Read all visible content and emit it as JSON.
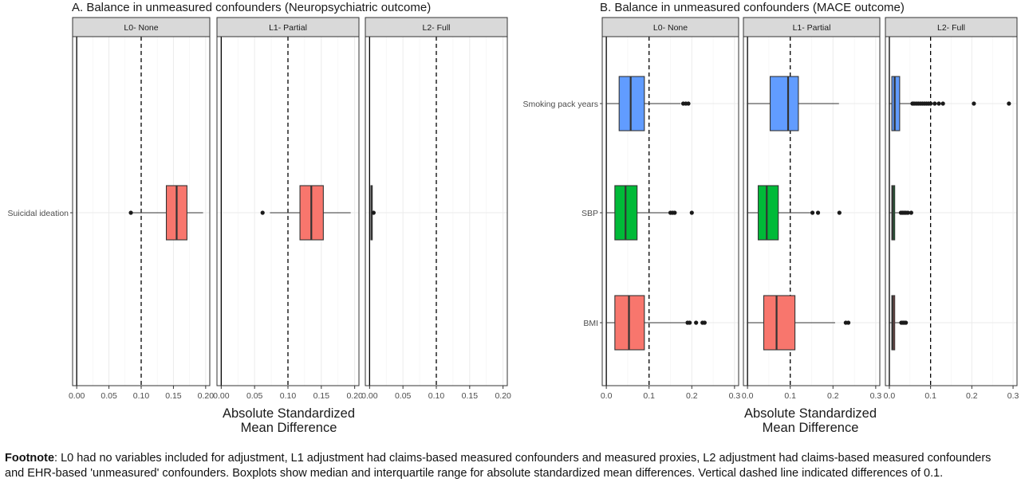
{
  "footnote": {
    "label": "Footnote",
    "text": ": L0 had no variables included for adjustment, L1 adjustment had claims-based measured confounders and measured proxies, L2 adjustment had claims-based measured confounders and EHR-based 'unmeasured' confounders. Boxplots show median and interquartile range for absolute standardized mean differences. Vertical dashed line indicated differences of 0.1."
  },
  "chart_data": [
    {
      "type": "boxplot",
      "title": "A. Balance in unmeasured confounders (Neuropsychiatric outcome)",
      "xlabel": "Absolute Standardized\nMean Difference",
      "ylabel": "",
      "xlim": [
        0,
        0.2
      ],
      "x_ticks": [
        "0.00",
        "0.05",
        "0.10",
        "0.15",
        "0.20"
      ],
      "reference_line": 0.1,
      "categories": [
        "Suicidal ideation"
      ],
      "colors": {
        "Suicidal ideation": "#F8766D"
      },
      "facets": [
        {
          "label": "L0- None",
          "boxes": [
            {
              "variable": "Suicidal ideation",
              "min": 0.087,
              "q1": 0.139,
              "median": 0.155,
              "q3": 0.171,
              "max": 0.196,
              "outliers": [
                0.084
              ]
            }
          ]
        },
        {
          "label": "L1- Partial",
          "boxes": [
            {
              "variable": "Suicidal ideation",
              "min": 0.073,
              "q1": 0.118,
              "median": 0.135,
              "q3": 0.153,
              "max": 0.194,
              "outliers": [
                0.062
              ]
            }
          ]
        },
        {
          "label": "L2- Full",
          "boxes": [
            {
              "variable": "Suicidal ideation",
              "min": 0.002,
              "q1": 0.002,
              "median": 0.003,
              "q3": 0.004,
              "max": 0.005,
              "outliers": [
                0.006
              ]
            }
          ]
        }
      ]
    },
    {
      "type": "boxplot",
      "title": "B. Balance in unmeasured confounders (MACE outcome)",
      "xlabel": "Absolute Standardized\nMean Difference",
      "ylabel": "",
      "xlim": [
        0,
        0.3
      ],
      "x_ticks": [
        "0.0",
        "0.1",
        "0.2",
        "0.3"
      ],
      "reference_line": 0.1,
      "categories": [
        "Smoking pack years",
        "SBP",
        "BMI"
      ],
      "colors": {
        "Smoking pack years": "#619CFF",
        "SBP": "#00BA38",
        "BMI": "#F8766D"
      },
      "facets": [
        {
          "label": "L0- None",
          "boxes": [
            {
              "variable": "Smoking pack years",
              "min": 0.0,
              "q1": 0.03,
              "median": 0.057,
              "q3": 0.089,
              "max": 0.174,
              "outliers": [
                0.18,
                0.186,
                0.192
              ]
            },
            {
              "variable": "SBP",
              "min": 0.0,
              "q1": 0.02,
              "median": 0.045,
              "q3": 0.072,
              "max": 0.148,
              "outliers": [
                0.15,
                0.155,
                0.16,
                0.2
              ]
            },
            {
              "variable": "BMI",
              "min": 0.0,
              "q1": 0.02,
              "median": 0.053,
              "q3": 0.089,
              "max": 0.185,
              "outliers": [
                0.19,
                0.195,
                0.21,
                0.225,
                0.23
              ]
            }
          ]
        },
        {
          "label": "L1- Partial",
          "boxes": [
            {
              "variable": "Smoking pack years",
              "min": 0.0,
              "q1": 0.053,
              "median": 0.095,
              "q3": 0.119,
              "max": 0.214,
              "outliers": []
            },
            {
              "variable": "SBP",
              "min": 0.0,
              "q1": 0.025,
              "median": 0.045,
              "q3": 0.072,
              "max": 0.148,
              "outliers": [
                0.152,
                0.165,
                0.215
              ]
            },
            {
              "variable": "BMI",
              "min": 0.0,
              "q1": 0.038,
              "median": 0.068,
              "q3": 0.111,
              "max": 0.205,
              "outliers": [
                0.23,
                0.236
              ]
            }
          ]
        },
        {
          "label": "L2- Full",
          "boxes": [
            {
              "variable": "Smoking pack years",
              "min": 0.0,
              "q1": 0.006,
              "median": 0.013,
              "q3": 0.025,
              "max": 0.052,
              "outliers": [
                0.056,
                0.06,
                0.065,
                0.07,
                0.075,
                0.08,
                0.085,
                0.09,
                0.095,
                0.1,
                0.11,
                0.12,
                0.13,
                0.205,
                0.29
              ]
            },
            {
              "variable": "SBP",
              "min": 0.0,
              "q1": 0.006,
              "median": 0.009,
              "q3": 0.013,
              "max": 0.024,
              "outliers": [
                0.028,
                0.032,
                0.036,
                0.04,
                0.045,
                0.053
              ]
            },
            {
              "variable": "BMI",
              "min": 0.0,
              "q1": 0.006,
              "median": 0.009,
              "q3": 0.013,
              "max": 0.025,
              "outliers": [
                0.029,
                0.033,
                0.036,
                0.04
              ]
            }
          ]
        }
      ]
    }
  ]
}
